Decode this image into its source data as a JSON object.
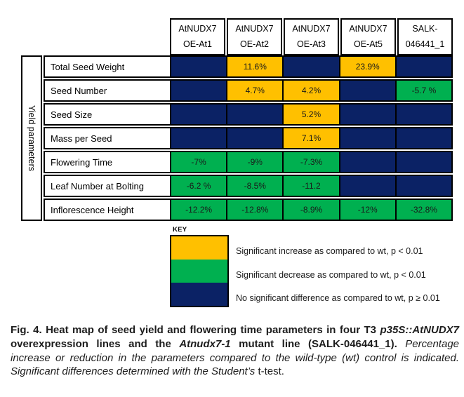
{
  "chart_data": {
    "type": "heatmap",
    "row_group_label": "Yield parameters",
    "columns": [
      [
        "AtNUDX7",
        "OE-At1"
      ],
      [
        "AtNUDX7",
        "OE-At2"
      ],
      [
        "AtNUDX7",
        "OE-At3"
      ],
      [
        "AtNUDX7",
        "OE-At5"
      ],
      [
        "SALK-",
        "046441_1"
      ]
    ],
    "rows": [
      {
        "label": "Total Seed Weight",
        "values_percent": [
          null,
          11.6,
          null,
          23.9,
          null
        ],
        "cells": [
          {
            "text": "",
            "status": "none"
          },
          {
            "text": "11.6%",
            "status": "increase"
          },
          {
            "text": "",
            "status": "none"
          },
          {
            "text": "23.9%",
            "status": "increase"
          },
          {
            "text": "",
            "status": "none"
          }
        ]
      },
      {
        "label": "Seed Number",
        "values_percent": [
          null,
          4.7,
          4.2,
          null,
          -5.7
        ],
        "cells": [
          {
            "text": "",
            "status": "none"
          },
          {
            "text": "4.7%",
            "status": "increase"
          },
          {
            "text": "4.2%",
            "status": "increase"
          },
          {
            "text": "",
            "status": "none"
          },
          {
            "text": "-5.7 %",
            "status": "decrease"
          }
        ]
      },
      {
        "label": "Seed Size",
        "values_percent": [
          null,
          null,
          5.2,
          null,
          null
        ],
        "cells": [
          {
            "text": "",
            "status": "none"
          },
          {
            "text": "",
            "status": "none"
          },
          {
            "text": "5.2%",
            "status": "increase"
          },
          {
            "text": "",
            "status": "none"
          },
          {
            "text": "",
            "status": "none"
          }
        ]
      },
      {
        "label": "Mass per Seed",
        "values_percent": [
          null,
          null,
          7.1,
          null,
          null
        ],
        "cells": [
          {
            "text": "",
            "status": "none"
          },
          {
            "text": "",
            "status": "none"
          },
          {
            "text": "7.1%",
            "status": "increase"
          },
          {
            "text": "",
            "status": "none"
          },
          {
            "text": "",
            "status": "none"
          }
        ]
      },
      {
        "label": "Flowering Time",
        "values_percent": [
          -7,
          -9,
          -7.3,
          null,
          null
        ],
        "cells": [
          {
            "text": "-7%",
            "status": "decrease"
          },
          {
            "text": "-9%",
            "status": "decrease"
          },
          {
            "text": "-7.3%",
            "status": "decrease"
          },
          {
            "text": "",
            "status": "none"
          },
          {
            "text": "",
            "status": "none"
          }
        ]
      },
      {
        "label": "Leaf Number at Bolting",
        "values_percent": [
          -6.2,
          -8.5,
          -11.2,
          null,
          null
        ],
        "cells": [
          {
            "text": "-6.2  %",
            "status": "decrease"
          },
          {
            "text": "-8.5%",
            "status": "decrease"
          },
          {
            "text": "-11.2",
            "status": "decrease"
          },
          {
            "text": "",
            "status": "none"
          },
          {
            "text": "",
            "status": "none"
          }
        ]
      },
      {
        "label": "Inflorescence  Height",
        "values_percent": [
          -12.2,
          -12.8,
          -8.9,
          -12,
          -32.8
        ],
        "cells": [
          {
            "text": "-12.2%",
            "status": "decrease"
          },
          {
            "text": "-12.8%",
            "status": "decrease"
          },
          {
            "text": "-8.9%",
            "status": "decrease"
          },
          {
            "text": "-12%",
            "status": "decrease"
          },
          {
            "text": "-32.8%",
            "status": "decrease"
          }
        ]
      }
    ],
    "legend": {
      "title": "KEY",
      "position": "below-left",
      "items": [
        {
          "status": "increase",
          "label": "Significant increase as compared to wt, p < 0.01"
        },
        {
          "status": "decrease",
          "label": "Significant decrease as compared to wt, p < 0.01"
        },
        {
          "status": "none",
          "label": "No significant difference as compared to wt, p ≥ 0.01"
        }
      ]
    },
    "status_colors": {
      "increase": "#ffc000",
      "decrease": "#00b050",
      "none": "#0b2265"
    }
  },
  "caption": {
    "segments": [
      {
        "text": "Fig. 4. Heat map of seed yield and flowering time parameters in four T3 ",
        "style": "bold"
      },
      {
        "text": "p35S::AtNUDX7",
        "style": "bold-italic"
      },
      {
        "text": " overexpression lines and the ",
        "style": "bold"
      },
      {
        "text": "Atnudx7-1",
        "style": "bold-italic"
      },
      {
        "text": " mutant line (SALK-046441_1).",
        "style": "bold"
      },
      {
        "text": " Percentage increase or reduction in the parameters compared to the wild-type (wt) control is indicated. Significant differences determined with the ",
        "style": "italic"
      },
      {
        "text": "Student’s ",
        "style": "italic"
      },
      {
        "text": "t-test.",
        "style": "normal"
      }
    ]
  }
}
